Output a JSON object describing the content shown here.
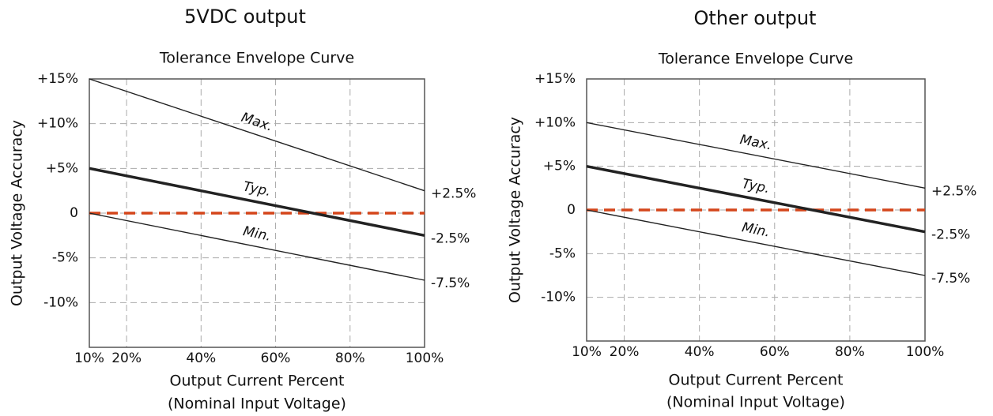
{
  "chart_data": [
    {
      "type": "line",
      "title": "5VDC output",
      "subtitle": "Tolerance Envelope Curve",
      "ylabel": "Output Voltage Accuracy",
      "xlabel": "Output Current Percent",
      "xlabel_note": "(Nominal Input Voltage)",
      "x": [
        10,
        100
      ],
      "series": [
        {
          "name": "Max.",
          "color": "#222222",
          "line_width": 1.4,
          "values": [
            15,
            2.5
          ],
          "value_labels": [
            null,
            "+2.5%"
          ]
        },
        {
          "name": "Typ.",
          "color": "#222222",
          "line_width": 3.5,
          "values": [
            5,
            -2.5
          ],
          "value_labels": [
            null,
            "-2.5%"
          ]
        },
        {
          "name": "Min.",
          "color": "#222222",
          "line_width": 1.4,
          "values": [
            0,
            -7.5
          ],
          "value_labels": [
            null,
            "-7.5%"
          ]
        }
      ],
      "reference_line": {
        "value": 0,
        "color": "#d4461b",
        "dashed": true
      },
      "xlim": [
        10,
        100
      ],
      "ylim": [
        -15,
        15
      ],
      "xticks": [
        {
          "value": 10,
          "label": "10%"
        },
        {
          "value": 20,
          "label": "20%"
        },
        {
          "value": 40,
          "label": "40%"
        },
        {
          "value": 60,
          "label": "60%"
        },
        {
          "value": 80,
          "label": "80%"
        },
        {
          "value": 100,
          "label": "100%"
        }
      ],
      "yticks": [
        {
          "value": 15,
          "label": "+15%"
        },
        {
          "value": 10,
          "label": "+10%"
        },
        {
          "value": 5,
          "label": "+5%"
        },
        0,
        {
          "value": -5,
          "label": "-5%"
        },
        {
          "value": -10,
          "label": "-10%"
        }
      ],
      "grid": true
    },
    {
      "type": "line",
      "title": "Other output",
      "subtitle": "Tolerance Envelope Curve",
      "ylabel": "Output Voltage Accuracy",
      "xlabel": "Output Current Percent",
      "xlabel_note": "(Nominal Input Voltage)",
      "x": [
        10,
        100
      ],
      "series": [
        {
          "name": "Max.",
          "color": "#222222",
          "line_width": 1.4,
          "values": [
            10,
            2.5
          ],
          "value_labels": [
            null,
            "+2.5%"
          ]
        },
        {
          "name": "Typ.",
          "color": "#222222",
          "line_width": 3.5,
          "values": [
            5,
            -2.5
          ],
          "value_labels": [
            null,
            "-2.5%"
          ]
        },
        {
          "name": "Min.",
          "color": "#222222",
          "line_width": 1.4,
          "values": [
            0,
            -7.5
          ],
          "value_labels": [
            null,
            "-7.5%"
          ]
        }
      ],
      "reference_line": {
        "value": 0,
        "color": "#d4461b",
        "dashed": true
      },
      "xlim": [
        10,
        100
      ],
      "ylim": [
        -15,
        15
      ],
      "xticks": [
        {
          "value": 10,
          "label": "10%"
        },
        {
          "value": 20,
          "label": "20%"
        },
        {
          "value": 40,
          "label": "40%"
        },
        {
          "value": 60,
          "label": "60%"
        },
        {
          "value": 80,
          "label": "80%"
        },
        {
          "value": 100,
          "label": "100%"
        }
      ],
      "yticks": [
        {
          "value": 15,
          "label": "+15%"
        },
        {
          "value": 10,
          "label": "+10%"
        },
        {
          "value": 5,
          "label": "+5%"
        },
        0,
        {
          "value": -5,
          "label": "-5%"
        },
        {
          "value": -10,
          "label": "-10%"
        }
      ],
      "grid": true
    }
  ]
}
